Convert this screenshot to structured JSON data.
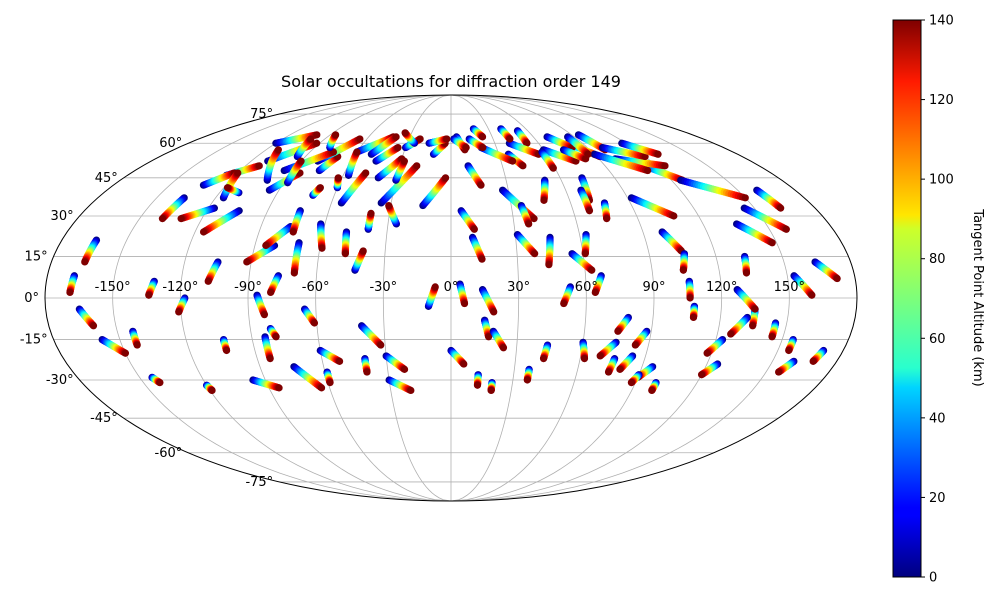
{
  "chart_data": {
    "type": "scatter",
    "title": "Solar occultations for diffraction order 149",
    "projection": "mollweide",
    "grid": true,
    "longitude_ticks": [
      -150,
      -120,
      -90,
      -60,
      -30,
      0,
      30,
      60,
      90,
      120,
      150
    ],
    "longitude_tick_labels": [
      "-150°",
      "-120°",
      "-90°",
      "-60°",
      "-30°",
      "0°",
      "30°",
      "60°",
      "90°",
      "120°",
      "150°"
    ],
    "latitude_ticks": [
      -75,
      -60,
      -45,
      -30,
      -15,
      0,
      15,
      30,
      45,
      60,
      75
    ],
    "latitude_tick_labels": [
      "-75°",
      "-60°",
      "-45°",
      "-30°",
      "-15°",
      "0°",
      "15°",
      "30°",
      "45°",
      "60°",
      "75°"
    ],
    "colorbar": {
      "label": "Tangent Point Altitude (km)",
      "range": [
        0,
        140
      ],
      "ticks": [
        0,
        20,
        40,
        60,
        80,
        100,
        120,
        140
      ],
      "colormap": "jet"
    },
    "altitude_range_per_track": [
      0,
      140
    ],
    "tracks": [
      {
        "lon0": -168,
        "lat0": 8,
        "lon1": -169,
        "lat1": 2
      },
      {
        "lon0": -165,
        "lat0": -4,
        "lon1": -160,
        "lat1": -10
      },
      {
        "lon0": -158,
        "lat0": -15,
        "lon1": -150,
        "lat1": -20
      },
      {
        "lon0": -143,
        "lat0": -12,
        "lon1": -143,
        "lat1": -17
      },
      {
        "lon0": -164,
        "lat0": 21,
        "lon1": -165,
        "lat1": 13
      },
      {
        "lon0": -136,
        "lat0": 37,
        "lon1": -139,
        "lat1": 29
      },
      {
        "lon0": -132,
        "lat0": 6,
        "lon1": -134,
        "lat1": 1
      },
      {
        "lon0": -118,
        "lat0": 0,
        "lon1": -121,
        "lat1": -5
      },
      {
        "lon0": -105,
        "lat0": 13,
        "lon1": -108,
        "lat1": 6
      },
      {
        "lon0": -117,
        "lat0": 33,
        "lon1": -130,
        "lat1": 29
      },
      {
        "lon0": -104,
        "lat0": 32,
        "lon1": -116,
        "lat1": 24
      },
      {
        "lon0": -81,
        "lat0": 19,
        "lon1": -92,
        "lat1": 13
      },
      {
        "lon0": -76,
        "lat0": 26,
        "lon1": -85,
        "lat1": 19
      },
      {
        "lon0": -70,
        "lat0": 20,
        "lon1": -70,
        "lat1": 9
      },
      {
        "lon0": -86,
        "lat0": 1,
        "lon1": -83,
        "lat1": -6
      },
      {
        "lon0": -81,
        "lat0": -11,
        "lon1": -79,
        "lat1": -14
      },
      {
        "lon0": -77,
        "lat0": 8,
        "lon1": -80,
        "lat1": 2
      },
      {
        "lon0": -65,
        "lat0": -4,
        "lon1": -61,
        "lat1": -9
      },
      {
        "lon0": -49,
        "lat0": 24,
        "lon1": -48,
        "lat1": 16
      },
      {
        "lon0": -60,
        "lat0": -19,
        "lon1": -52,
        "lat1": -23
      },
      {
        "lon0": -40,
        "lat0": -10,
        "lon1": -32,
        "lat1": -17
      },
      {
        "lon0": -30,
        "lat0": -21,
        "lon1": -22,
        "lat1": -26
      },
      {
        "lon0": -144,
        "lat0": -29,
        "lon1": -142,
        "lat1": -31
      },
      {
        "lon0": -120,
        "lat0": -32,
        "lon1": -119,
        "lat1": -34
      },
      {
        "lon0": -103,
        "lat0": -15,
        "lon1": -103,
        "lat1": -19
      },
      {
        "lon0": -84,
        "lat0": -14,
        "lon1": -84,
        "lat1": -22
      },
      {
        "lon0": -96,
        "lat0": -30,
        "lon1": -85,
        "lat1": -33
      },
      {
        "lon0": -74,
        "lat0": -25,
        "lon1": -64,
        "lat1": -33
      },
      {
        "lon0": -59,
        "lat0": -27,
        "lon1": -59,
        "lat1": -31
      },
      {
        "lon0": -43,
        "lat0": 10,
        "lon1": -40,
        "lat1": 17
      },
      {
        "lon0": -40,
        "lat0": -22,
        "lon1": -40,
        "lat1": -27
      },
      {
        "lon0": -30,
        "lat0": -30,
        "lon1": -20,
        "lat1": -34
      },
      {
        "lon0": -39,
        "lat0": 25,
        "lon1": -39,
        "lat1": 31
      },
      {
        "lon0": -26,
        "lat0": 27,
        "lon1": -31,
        "lat1": 34
      },
      {
        "lon0": -10,
        "lat0": -3,
        "lon1": -7,
        "lat1": 4
      },
      {
        "lon0": 4,
        "lat0": 5,
        "lon1": 6,
        "lat1": -2
      },
      {
        "lon0": 5,
        "lat0": 32,
        "lon1": 11,
        "lat1": 25
      },
      {
        "lon0": 10,
        "lat0": 22,
        "lon1": 14,
        "lat1": 14
      },
      {
        "lon0": 15,
        "lat0": -8,
        "lon1": 17,
        "lat1": -14
      },
      {
        "lon0": 14,
        "lat0": 3,
        "lon1": 19,
        "lat1": -5
      },
      {
        "lon0": 19,
        "lat0": -12,
        "lon1": 24,
        "lat1": -18
      },
      {
        "lon0": 0,
        "lat0": -19,
        "lon1": 6,
        "lat1": -24
      },
      {
        "lon0": 13,
        "lat0": -28,
        "lon1": 13,
        "lat1": -32
      },
      {
        "lon0": 20,
        "lat0": -31,
        "lon1": 20,
        "lat1": -34
      },
      {
        "lon0": 37,
        "lat0": -26,
        "lon1": 37,
        "lat1": -30
      },
      {
        "lon0": 44,
        "lat0": -17,
        "lon1": 43,
        "lat1": -22
      },
      {
        "lon0": 53,
        "lat0": 4,
        "lon1": 50,
        "lat1": -2
      },
      {
        "lon0": 31,
        "lat0": 23,
        "lon1": 38,
        "lat1": 16
      },
      {
        "lon0": 46,
        "lat0": 22,
        "lon1": 44,
        "lat1": 12
      },
      {
        "lon0": 55,
        "lat0": 16,
        "lon1": 63,
        "lat1": 10
      },
      {
        "lon0": 63,
        "lat0": 23,
        "lon1": 61,
        "lat1": 16
      },
      {
        "lon0": 67,
        "lat0": 8,
        "lon1": 64,
        "lat1": 2
      },
      {
        "lon0": 60,
        "lat0": -16,
        "lon1": 62,
        "lat1": -22
      },
      {
        "lon0": 75,
        "lat0": -16,
        "lon1": 69,
        "lat1": -21
      },
      {
        "lon0": 79,
        "lat0": -7,
        "lon1": 75,
        "lat1": -12
      },
      {
        "lon0": 88,
        "lat0": -12,
        "lon1": 84,
        "lat1": -17
      },
      {
        "lon0": 76,
        "lat0": -22,
        "lon1": 75,
        "lat1": -27
      },
      {
        "lon0": 84,
        "lat0": -21,
        "lon1": 80,
        "lat1": -26
      },
      {
        "lon0": 95,
        "lat0": -25,
        "lon1": 90,
        "lat1": -29
      },
      {
        "lon0": 90,
        "lat0": -28,
        "lon1": 88,
        "lat1": -31
      },
      {
        "lon0": 100,
        "lat0": -31,
        "lon1": 100,
        "lat1": -34
      },
      {
        "lon0": 123,
        "lat0": -15,
        "lon1": 118,
        "lat1": -20
      },
      {
        "lon0": 135,
        "lat0": -4,
        "lon1": 135,
        "lat1": -10
      },
      {
        "lon0": 132,
        "lat0": -7,
        "lon1": 126,
        "lat1": -13
      },
      {
        "lon0": 145,
        "lat0": -9,
        "lon1": 145,
        "lat1": -14
      },
      {
        "lon0": 125,
        "lat0": -24,
        "lon1": 120,
        "lat1": -28
      },
      {
        "lon0": 155,
        "lat0": -15,
        "lon1": 155,
        "lat1": -19
      },
      {
        "lon0": 160,
        "lat0": -23,
        "lon1": 156,
        "lat1": -27
      },
      {
        "lon0": 171,
        "lat0": -19,
        "lon1": 169,
        "lat1": -23
      },
      {
        "lon0": 99,
        "lat0": 24,
        "lon1": 105,
        "lat1": 17
      },
      {
        "lon0": 106,
        "lat0": 16,
        "lon1": 104,
        "lat1": 10
      },
      {
        "lon0": 106,
        "lat0": 6,
        "lon1": 106,
        "lat1": 0
      },
      {
        "lon0": 108,
        "lat0": -3,
        "lon1": 108,
        "lat1": -7
      },
      {
        "lon0": 133,
        "lat0": 15,
        "lon1": 132,
        "lat1": 9
      },
      {
        "lon0": 127,
        "lat0": 3,
        "lon1": 135,
        "lat1": -4
      },
      {
        "lon0": 136,
        "lat0": 27,
        "lon1": 148,
        "lat1": 20
      },
      {
        "lon0": 145,
        "lat0": 33,
        "lon1": 158,
        "lat1": 25
      },
      {
        "lon0": 160,
        "lat0": 40,
        "lon1": 163,
        "lat1": 33
      },
      {
        "lon0": 153,
        "lat0": 8,
        "lon1": 160,
        "lat1": 1
      },
      {
        "lon0": 164,
        "lat0": 13,
        "lon1": 172,
        "lat1": 7
      },
      {
        "lon0": 92,
        "lat0": 37,
        "lon1": 108,
        "lat1": 30
      },
      {
        "lon0": 113,
        "lat0": 50,
        "lon1": 126,
        "lat1": 44
      },
      {
        "lon0": 125,
        "lat0": 44,
        "lon1": 150,
        "lat1": 37
      },
      {
        "lon0": 100,
        "lat0": 53,
        "lon1": 125,
        "lat1": 50
      },
      {
        "lon0": 80,
        "lat0": 60,
        "lon1": 92,
        "lat1": 54
      },
      {
        "lon0": 90,
        "lat0": 55,
        "lon1": 112,
        "lat1": 48
      },
      {
        "lon0": 70,
        "lat0": 63,
        "lon1": 80,
        "lat1": 58
      },
      {
        "lon0": 60,
        "lat0": 57,
        "lon1": 75,
        "lat1": 52
      },
      {
        "lon0": 52,
        "lat0": 66,
        "lon1": 52,
        "lat1": 60
      },
      {
        "lon0": 40,
        "lat0": 60,
        "lon1": 55,
        "lat1": 55
      },
      {
        "lon0": 36,
        "lat0": 55,
        "lon1": 42,
        "lat1": 50
      },
      {
        "lon0": 40,
        "lat0": 67,
        "lon1": 42,
        "lat1": 62
      },
      {
        "lon0": 20,
        "lat0": 58,
        "lon1": 37,
        "lat1": 52
      },
      {
        "lon0": 27,
        "lat0": 40,
        "lon1": 40,
        "lat1": 29
      },
      {
        "lon0": 35,
        "lat0": 34,
        "lon1": 37,
        "lat1": 27
      },
      {
        "lon0": 51,
        "lat0": 44,
        "lon1": 47,
        "lat1": 36
      },
      {
        "lon0": 58,
        "lat0": 56,
        "lon1": 59,
        "lat1": 49
      },
      {
        "lon0": 72,
        "lat0": 45,
        "lon1": 70,
        "lat1": 36
      },
      {
        "lon0": 68,
        "lat0": 40,
        "lon1": 68,
        "lat1": 32
      },
      {
        "lon0": 73,
        "lat0": 57,
        "lon1": 82,
        "lat1": 53
      },
      {
        "lon0": 77,
        "lat0": 35,
        "lon1": 75,
        "lat1": 29
      },
      {
        "lon0": 95,
        "lat0": 64,
        "lon1": 100,
        "lat1": 57
      },
      {
        "lon0": 100,
        "lat0": 58,
        "lon1": 120,
        "lat1": 54
      },
      {
        "lon0": 117,
        "lat0": 60,
        "lon1": 130,
        "lat1": 55
      },
      {
        "lon0": 85,
        "lat0": 63,
        "lon1": 86,
        "lat1": 55
      },
      {
        "lon0": 10,
        "lat0": 50,
        "lon1": 16,
        "lat1": 42
      },
      {
        "lon0": 4,
        "lat0": 63,
        "lon1": 9,
        "lat1": 57
      },
      {
        "lon0": 13,
        "lat0": 62,
        "lon1": 21,
        "lat1": 58
      },
      {
        "lon0": 18,
        "lat0": 67,
        "lon1": 23,
        "lat1": 63
      },
      {
        "lon0": 2,
        "lat0": 62,
        "lon1": 10,
        "lat1": 58
      },
      {
        "lon0": -11,
        "lat0": 55,
        "lon1": -4,
        "lat1": 60
      },
      {
        "lon0": -15,
        "lat0": 60,
        "lon1": -3,
        "lat1": 62
      },
      {
        "lon0": -30,
        "lat0": 58,
        "lon1": -22,
        "lat1": 62
      },
      {
        "lon0": -25,
        "lat0": 60,
        "lon1": -35,
        "lat1": 65
      },
      {
        "lon0": -60,
        "lat0": 56,
        "lon1": -42,
        "lat1": 63
      },
      {
        "lon0": -50,
        "lat0": 55,
        "lon1": -40,
        "lat1": 63
      },
      {
        "lon0": -45,
        "lat0": 52,
        "lon1": -35,
        "lat1": 58
      },
      {
        "lon0": -40,
        "lat0": 45,
        "lon1": -30,
        "lat1": 53
      },
      {
        "lon0": -35,
        "lat0": 35,
        "lon1": -20,
        "lat1": 50
      },
      {
        "lon0": -55,
        "lat0": 35,
        "lon1": -48,
        "lat1": 47
      },
      {
        "lon0": -75,
        "lat0": 48,
        "lon1": -70,
        "lat1": 54
      },
      {
        "lon0": -80,
        "lat0": 52,
        "lon1": -65,
        "lat1": 62
      },
      {
        "lon0": -95,
        "lat0": 48,
        "lon1": -75,
        "lat1": 56
      },
      {
        "lon0": -110,
        "lat0": 52,
        "lon1": -92,
        "lat1": 60
      },
      {
        "lon0": -120,
        "lat0": 60,
        "lon1": -100,
        "lat1": 64
      },
      {
        "lon0": -125,
        "lat0": 46,
        "lon1": -112,
        "lat1": 50
      },
      {
        "lon0": -132,
        "lat0": 42,
        "lon1": -122,
        "lat1": 47
      },
      {
        "lon0": -116,
        "lat0": 37,
        "lon1": -120,
        "lat1": 47
      },
      {
        "lon0": -95,
        "lat0": 40,
        "lon1": -85,
        "lat1": 47
      },
      {
        "lon0": -100,
        "lat0": 44,
        "lon1": -112,
        "lat1": 57
      },
      {
        "lon0": -95,
        "lat0": 54,
        "lon1": -100,
        "lat1": 62
      },
      {
        "lon0": -88,
        "lat0": 43,
        "lon1": -90,
        "lat1": 52
      },
      {
        "lon0": -80,
        "lat0": 58,
        "lon1": -86,
        "lat1": 64
      },
      {
        "lon0": -57,
        "lat0": 46,
        "lon1": -60,
        "lat1": 56
      },
      {
        "lon0": -30,
        "lat0": 44,
        "lon1": -28,
        "lat1": 52
      },
      {
        "lon0": -110,
        "lat0": 39,
        "lon1": -118,
        "lat1": 41
      },
      {
        "lon0": -14,
        "lat0": 34,
        "lon1": -3,
        "lat1": 45
      },
      {
        "lon0": -74,
        "lat0": 32,
        "lon1": -74,
        "lat1": 24
      },
      {
        "lon0": -62,
        "lat0": 27,
        "lon1": -59,
        "lat1": 18
      },
      {
        "lon0": -71,
        "lat0": 38,
        "lon1": -69,
        "lat1": 41
      },
      {
        "lon0": -60,
        "lat0": 41,
        "lon1": -62,
        "lat1": 45
      }
    ]
  }
}
